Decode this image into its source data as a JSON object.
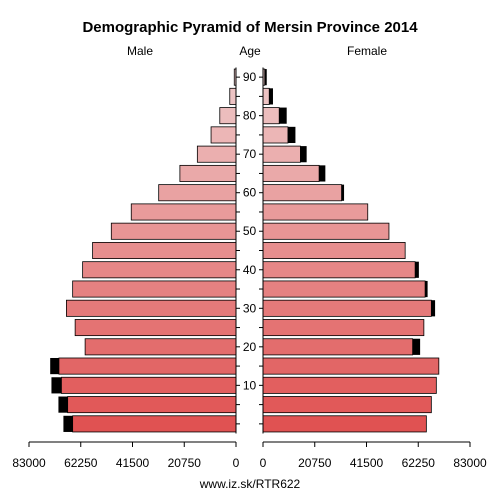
{
  "chart_data": {
    "type": "bar",
    "title": "Demographic Pyramid of Mersin Province 2014",
    "left_label": "Male",
    "center_label": "Age",
    "right_label": "Female",
    "source": "www.iz.sk/RTR622",
    "age_groups": [
      "0-4",
      "5-9",
      "10-14",
      "15-19",
      "20-24",
      "25-29",
      "30-34",
      "35-39",
      "40-44",
      "45-49",
      "50-54",
      "55-59",
      "60-64",
      "65-69",
      "70-74",
      "75-79",
      "80-84",
      "85-89",
      "90+"
    ],
    "age_ticks": [
      10,
      20,
      30,
      40,
      50,
      60,
      70,
      80,
      90
    ],
    "x_ticks_left": [
      "83000",
      "62250",
      "41500",
      "20750",
      "0"
    ],
    "x_ticks_right": [
      "0",
      "20750",
      "41500",
      "62250",
      "83000"
    ],
    "x_tick_values": [
      0,
      20750,
      41500,
      62250,
      83000
    ],
    "xlim": [
      0,
      83000
    ],
    "series": [
      {
        "name": "Male",
        "values": [
          65500,
          67500,
          70000,
          71000,
          60500,
          64500,
          68000,
          65500,
          61500,
          57500,
          50000,
          42000,
          31000,
          22500,
          15500,
          10000,
          6500,
          2500,
          700
        ],
        "excess": [
          3700,
          3700,
          4000,
          3500,
          0,
          0,
          0,
          0,
          0,
          0,
          0,
          0,
          0,
          0,
          0,
          0,
          0,
          0,
          0
        ]
      },
      {
        "name": "Female",
        "values": [
          65500,
          67500,
          69500,
          70500,
          60000,
          64500,
          67500,
          65000,
          61000,
          57000,
          50500,
          42000,
          31500,
          22500,
          15000,
          10000,
          6500,
          2500,
          700
        ],
        "excess": [
          0,
          0,
          0,
          0,
          3000,
          0,
          1500,
          1000,
          1500,
          0,
          0,
          0,
          1000,
          2500,
          2500,
          3000,
          3000,
          1500,
          800
        ]
      }
    ],
    "colors": {
      "young": "#e05252",
      "old": "#eecaca",
      "excess": "#000000"
    }
  }
}
